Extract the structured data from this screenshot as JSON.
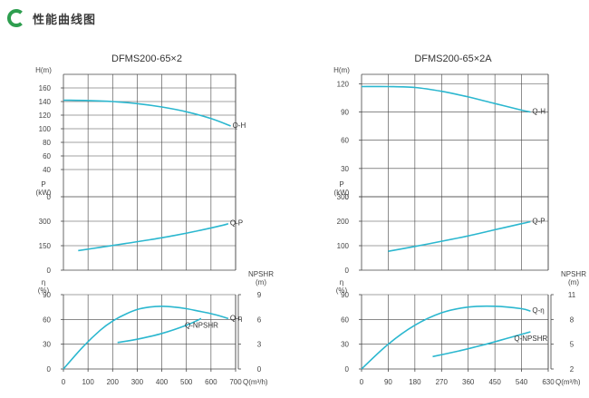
{
  "page": {
    "title": "性能曲线图"
  },
  "colors": {
    "curve": "#2bb7cf",
    "brand": "#2e9e4f",
    "axis": "#444444"
  },
  "chart_data": [
    {
      "type": "line",
      "title": "DFMS200-65×2",
      "x": {
        "label": "Q(m³/h)",
        "ticks": [
          "0",
          "100",
          "200",
          "300",
          "400",
          "500",
          "600",
          "700"
        ],
        "range": [
          0,
          730
        ]
      },
      "panels": [
        {
          "id": "H",
          "axis_label": "H(m)",
          "ticks": [
            "0",
            "40",
            "60",
            "80",
            "100",
            "120",
            "140",
            "160"
          ],
          "range": [
            0,
            180
          ]
        },
        {
          "id": "P",
          "axis_label": "P\n(kW)",
          "ticks": [
            "0",
            "150",
            "300"
          ],
          "range": [
            0,
            450
          ]
        },
        {
          "id": "eta",
          "axis_label": "η\n(%)",
          "ticks": [
            "0",
            "30",
            "60",
            "90"
          ],
          "range": [
            0,
            90
          ],
          "right_axis": {
            "label": "NPSHR\n(m)",
            "ticks": [
              "0",
              "3",
              "6",
              "9"
            ],
            "range": [
              0,
              9
            ]
          }
        }
      ],
      "series": [
        {
          "name": "Q-H",
          "panel": "H",
          "x": [
            0,
            100,
            200,
            300,
            400,
            500,
            600,
            680
          ],
          "y": [
            142,
            141.5,
            140,
            137,
            132,
            125,
            115,
            104
          ]
        },
        {
          "name": "Q-P",
          "panel": "P",
          "x": [
            60,
            150,
            250,
            350,
            450,
            550,
            650,
            670
          ],
          "y": [
            120,
            140,
            163,
            186,
            212,
            242,
            276,
            285
          ]
        },
        {
          "name": "Q-η",
          "panel": "eta",
          "x": [
            0,
            80,
            150,
            200,
            250,
            300,
            350,
            400,
            450,
            500,
            550,
            600,
            650,
            670
          ],
          "y": [
            0,
            27,
            47,
            58,
            66,
            72,
            75,
            76,
            75,
            73,
            70,
            67,
            63,
            61
          ]
        },
        {
          "name": "Q-NPSHR",
          "panel": "eta",
          "axis": "right",
          "x": [
            220,
            300,
            400,
            500,
            560
          ],
          "y": [
            3.2,
            3.6,
            4.3,
            5.3,
            6.1
          ]
        }
      ]
    },
    {
      "type": "line",
      "title": "DFMS200-65×2A",
      "x": {
        "label": "Q(m³/h)",
        "ticks": [
          "0",
          "90",
          "180",
          "270",
          "360",
          "450",
          "540",
          "630"
        ],
        "range": [
          0,
          650
        ]
      },
      "panels": [
        {
          "id": "H",
          "axis_label": "H(m)",
          "ticks": [
            "0",
            "30",
            "60",
            "90",
            "120"
          ],
          "range": [
            0,
            130
          ]
        },
        {
          "id": "P",
          "axis_label": "P\n(kW)",
          "ticks": [
            "0",
            "100",
            "200",
            "300"
          ],
          "range": [
            0,
            300
          ]
        },
        {
          "id": "eta",
          "axis_label": "η\n(%)",
          "ticks": [
            "0",
            "30",
            "60",
            "90"
          ],
          "range": [
            0,
            90
          ],
          "right_axis": {
            "label": "NPSHR\n(m)",
            "ticks": [
              "2",
              "5",
              "8",
              "11"
            ],
            "range": [
              2,
              11
            ]
          }
        }
      ],
      "series": [
        {
          "name": "Q-H",
          "panel": "H",
          "x": [
            0,
            90,
            180,
            270,
            360,
            450,
            540,
            570
          ],
          "y": [
            117,
            117,
            116,
            112,
            106,
            99,
            92,
            90
          ]
        },
        {
          "name": "Q-P",
          "panel": "P",
          "x": [
            90,
            180,
            270,
            360,
            450,
            540,
            570
          ],
          "y": [
            77,
            97,
            118,
            140,
            165,
            190,
            198
          ]
        },
        {
          "name": "Q-η",
          "panel": "eta",
          "x": [
            0,
            90,
            180,
            270,
            360,
            450,
            540,
            570
          ],
          "y": [
            0,
            30,
            53,
            68,
            75,
            76,
            73,
            70
          ]
        },
        {
          "name": "Q-NPSHR",
          "panel": "eta",
          "axis": "right",
          "x": [
            240,
            330,
            420,
            510,
            570
          ],
          "y": [
            3.5,
            4.2,
            5.0,
            5.9,
            6.5
          ]
        }
      ]
    }
  ]
}
